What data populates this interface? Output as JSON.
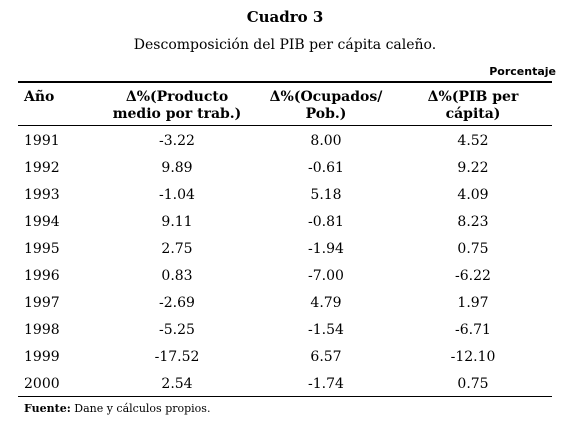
{
  "header": {
    "title": "Cuadro 3",
    "subtitle": "Descomposición del PIB per cápita caleño.",
    "unit": "Porcentaje"
  },
  "table": {
    "columns": [
      [
        "Año"
      ],
      [
        "Δ%(Producto",
        "medio por trab.)"
      ],
      [
        "Δ%(Ocupados/",
        "Pob.)"
      ],
      [
        "Δ%(PIB per",
        "cápita)"
      ]
    ],
    "rows": [
      [
        "1991",
        "-3.22",
        "8.00",
        "4.52"
      ],
      [
        "1992",
        "9.89",
        "-0.61",
        "9.22"
      ],
      [
        "1993",
        "-1.04",
        "5.18",
        "4.09"
      ],
      [
        "1994",
        "9.11",
        "-0.81",
        "8.23"
      ],
      [
        "1995",
        "2.75",
        "-1.94",
        "0.75"
      ],
      [
        "1996",
        "0.83",
        "-7.00",
        "-6.22"
      ],
      [
        "1997",
        "-2.69",
        "4.79",
        "1.97"
      ],
      [
        "1998",
        "-5.25",
        "-1.54",
        "-6.71"
      ],
      [
        "1999",
        "-17.52",
        "6.57",
        "-12.10"
      ],
      [
        "2000",
        "2.54",
        "-1.74",
        "0.75"
      ]
    ]
  },
  "footer": {
    "label": "Fuente:",
    "text": "Dane y cálculos propios."
  }
}
